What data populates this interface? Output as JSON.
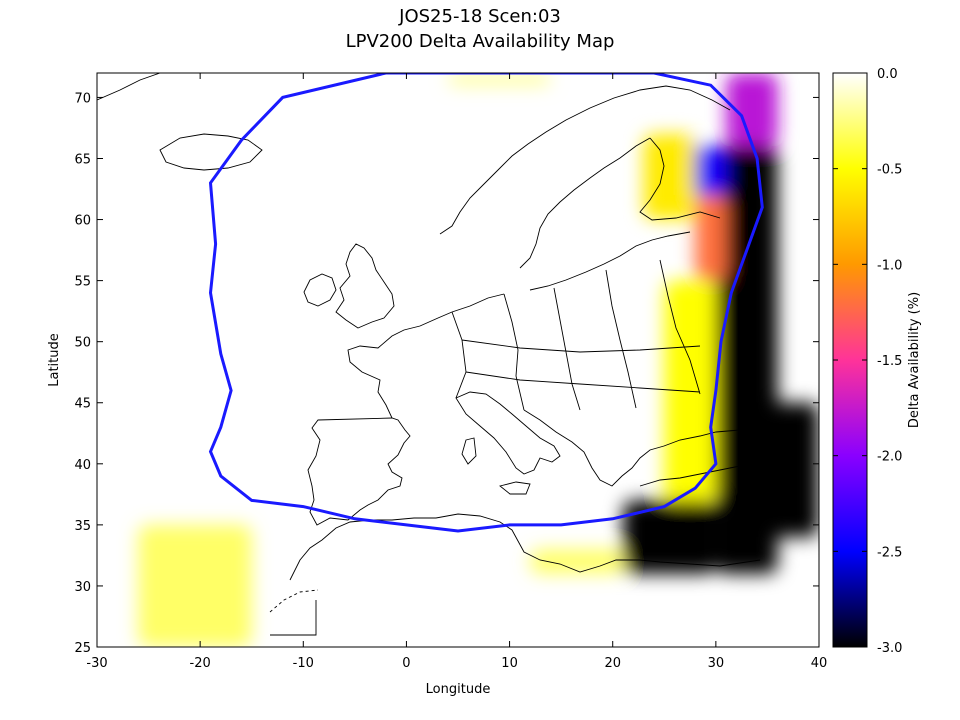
{
  "title": "JOS25-18 Scen:03",
  "subtitle": "LPV200 Delta Availability Map",
  "axes": {
    "xlabel": "Longitude",
    "ylabel": "Latitude",
    "xlim": [
      -30,
      40
    ],
    "ylim": [
      25,
      72
    ],
    "xticks": [
      -30,
      -20,
      -10,
      0,
      10,
      20,
      30,
      40
    ],
    "yticks": [
      25,
      30,
      35,
      40,
      45,
      50,
      55,
      60,
      65,
      70
    ]
  },
  "colorbar": {
    "label": "Delta Availability (%)",
    "range": [
      -3.0,
      0.0
    ],
    "ticks": [
      "0.0",
      "-0.5",
      "-1.0",
      "-1.5",
      "-2.0",
      "-2.5",
      "-3.0"
    ],
    "tick_values": [
      0.0,
      -0.5,
      -1.0,
      -1.5,
      -2.0,
      -2.5,
      -3.0
    ],
    "colors": [
      "#ffffff",
      "#ffff00",
      "#ff9900",
      "#ff3399",
      "#8a00ff",
      "#0000ff",
      "#000000"
    ]
  },
  "colors": {
    "service_area_contour": "#1a1aff",
    "coastline": "#000000"
  },
  "service_area_contour": [
    [
      -2,
      72
    ],
    [
      -12,
      70
    ],
    [
      -16,
      66.5
    ],
    [
      -19,
      63
    ],
    [
      -18.5,
      58
    ],
    [
      -19,
      54
    ],
    [
      -18,
      49
    ],
    [
      -17,
      46
    ],
    [
      -18,
      43
    ],
    [
      -19,
      41
    ],
    [
      -18,
      39
    ],
    [
      -15,
      37
    ],
    [
      -10,
      36.5
    ],
    [
      -5,
      35.5
    ],
    [
      0,
      35
    ],
    [
      5,
      34.5
    ],
    [
      10,
      35
    ],
    [
      15,
      35
    ],
    [
      20,
      35.5
    ],
    [
      25,
      36.5
    ],
    [
      28,
      38
    ],
    [
      30,
      40
    ],
    [
      29.5,
      43
    ],
    [
      30,
      46
    ],
    [
      30.5,
      50
    ],
    [
      31.5,
      54
    ],
    [
      33,
      57.5
    ],
    [
      34.5,
      61
    ],
    [
      34,
      65
    ],
    [
      32.5,
      68.5
    ],
    [
      29.5,
      71
    ],
    [
      24,
      72
    ]
  ],
  "delta_regions": [
    {
      "lon": [
        21,
        30
      ],
      "lat": [
        31,
        37
      ],
      "value": -3.0
    },
    {
      "lon": [
        30,
        36
      ],
      "lat": [
        31,
        66
      ],
      "value": -3.0
    },
    {
      "lon": [
        35,
        40
      ],
      "lat": [
        34,
        45
      ],
      "value": -3.0
    },
    {
      "lon": [
        26,
        31
      ],
      "lat": [
        62,
        66
      ],
      "value": -2.4
    },
    {
      "lon": [
        31,
        36
      ],
      "lat": [
        66,
        72
      ],
      "value": -1.8
    },
    {
      "lon": [
        28,
        31
      ],
      "lat": [
        55,
        62
      ],
      "value": -1.2
    },
    {
      "lon": [
        23,
        28
      ],
      "lat": [
        60,
        67
      ],
      "value": -0.6
    },
    {
      "lon": [
        25,
        30
      ],
      "lat": [
        37,
        55
      ],
      "value": -0.5
    },
    {
      "lon": [
        12,
        21
      ],
      "lat": [
        31,
        33
      ],
      "value": -0.3
    },
    {
      "lon": [
        -26,
        -15
      ],
      "lat": [
        25,
        35
      ],
      "value": -0.3
    },
    {
      "lon": [
        4,
        14
      ],
      "lat": [
        71,
        72
      ],
      "value": -0.2
    }
  ]
}
